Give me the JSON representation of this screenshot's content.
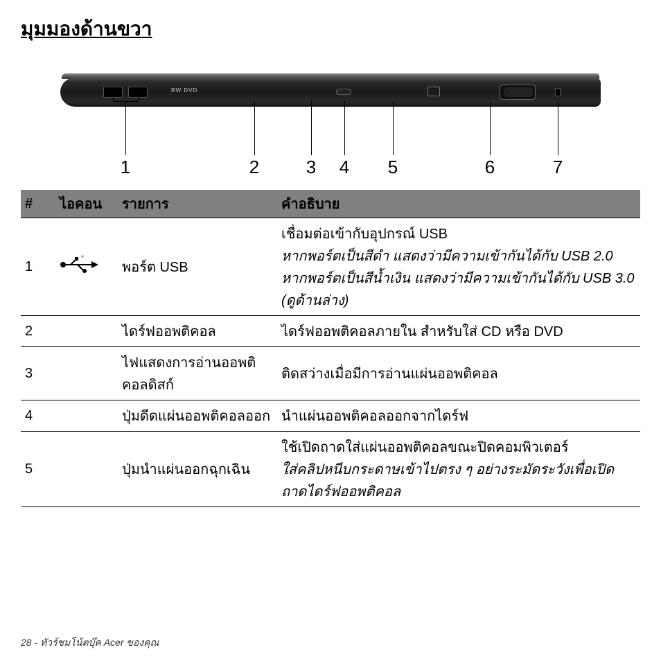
{
  "title": "มุมมองด้านขวา",
  "callouts": [
    "1",
    "2",
    "3",
    "4",
    "5",
    "6",
    "7"
  ],
  "table": {
    "headers": {
      "num": "#",
      "icon": "ไอคอน",
      "item": "รายการ",
      "desc": "คำอธิบาย"
    },
    "rows": [
      {
        "num": "1",
        "icon": "usb",
        "item": "พอร์ต USB",
        "desc_plain": "เชื่อมต่อเข้ากับอุปกรณ์ USB",
        "desc_italic": "หากพอร์ตเป็นสีดำ แสดงว่ามีความเข้ากันได้กับ USB 2.0 หากพอร์ตเป็นสีน้ำเงิน แสดงว่ามีความเข้ากันได้กับ USB 3.0 (ดูด้านล่าง)"
      },
      {
        "num": "2",
        "icon": "",
        "item": "ไดร์ฟออพติคอล",
        "desc_plain": "ไดร์ฟออพติคอลภายใน สำหรับใส่ CD หรือ DVD",
        "desc_italic": ""
      },
      {
        "num": "3",
        "icon": "",
        "item": "ไฟแสดงการอ่านออพติคอลดิสก์",
        "desc_plain": "ติดสว่างเมื่อมีการอ่านแผ่นออพติคอล",
        "desc_italic": ""
      },
      {
        "num": "4",
        "icon": "",
        "item": "ปุ่มดีดแผ่นออพติคอลออก",
        "desc_plain": "นำแผ่นออพติคอลออกจากไดร์ฟ",
        "desc_italic": ""
      },
      {
        "num": "5",
        "icon": "",
        "item": "ปุ่มนำแผ่นออกฉุกเฉิน",
        "desc_plain": "ใช้เปิดถาดใส่แผ่นออพติคอลขณะปิดคอมพิวเตอร์",
        "desc_italic": "ใส่คลิปหนีบกระดาษเข้าไปตรง ๆ อย่างระมัดระวังเพื่อเปิดถาดไดร์ฟออพติคอล"
      }
    ]
  },
  "footer": {
    "page": "28",
    "text": "ทัวร์ชมโน้ตบุ๊ค Acer ของคุณ"
  },
  "colors": {
    "header_bg": "#808080",
    "text": "#000000",
    "background": "#ffffff"
  }
}
